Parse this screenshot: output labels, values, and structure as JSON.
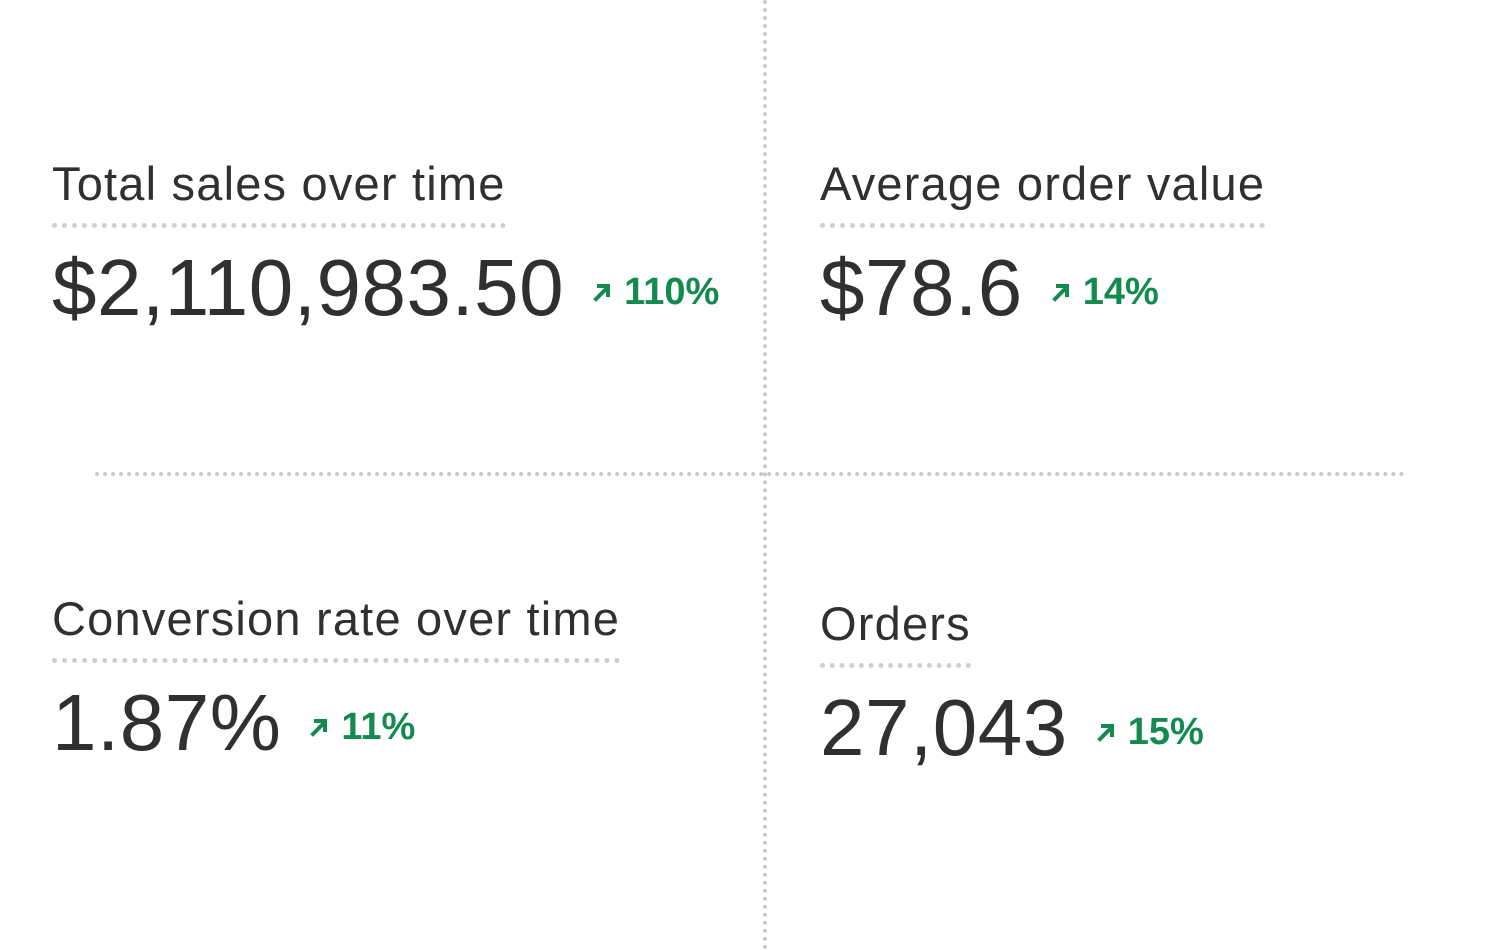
{
  "metrics": [
    {
      "title": "Total sales over time",
      "value": "$2,110,983.50",
      "change": "110%"
    },
    {
      "title": "Average order value",
      "value": "$78.6",
      "change": "14%"
    },
    {
      "title": "Conversion rate over time",
      "value": "1.87%",
      "change": "11%"
    },
    {
      "title": "Orders",
      "value": "27,043",
      "change": "15%"
    }
  ]
}
